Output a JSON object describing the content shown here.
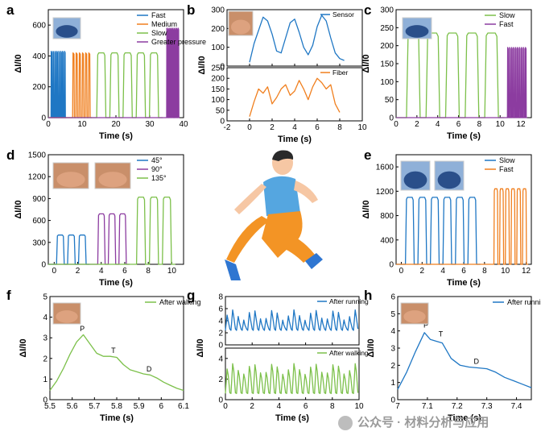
{
  "figure": {
    "panels": [
      {
        "id": "a",
        "label": "a"
      },
      {
        "id": "b",
        "label": "b"
      },
      {
        "id": "c",
        "label": "c"
      },
      {
        "id": "d",
        "label": "d"
      },
      {
        "id": "e",
        "label": "e"
      },
      {
        "id": "f",
        "label": "f"
      },
      {
        "id": "g",
        "label": "g"
      },
      {
        "id": "h",
        "label": "h"
      }
    ],
    "runner_icon": "running-person-icon",
    "colors": {
      "blue": "#1f77c4",
      "orange": "#f07f1e",
      "green": "#7cc04a",
      "purple": "#8c3ca0",
      "axis": "#000000"
    }
  },
  "watermark": {
    "text": "公众号 · 材料分析与应用"
  },
  "chart_data": [
    {
      "id": "a",
      "type": "line",
      "title": "",
      "xlabel": "Time (s)",
      "ylabel": "ΔI/I0",
      "xlim": [
        0,
        40
      ],
      "ylim": [
        0,
        700
      ],
      "xticks": [
        0,
        10,
        20,
        30,
        40
      ],
      "yticks": [
        0,
        200,
        400,
        600
      ],
      "legend_position": "top-right",
      "series": [
        {
          "name": "Fast",
          "color": "#1f77c4",
          "x_start": 0.8,
          "x_end": 5.3,
          "peak": 430,
          "pulses": 8,
          "shape": "spike"
        },
        {
          "name": "Medium",
          "color": "#f07f1e",
          "x_start": 7.2,
          "x_end": 12.8,
          "peak": 420,
          "pulses": 6,
          "shape": "spike"
        },
        {
          "name": "Slow",
          "color": "#7cc04a",
          "x_start": 14.3,
          "x_end": 33.8,
          "peak": 420,
          "pulses": 5,
          "shape": "plateau"
        },
        {
          "name": "Greater pressure",
          "color": "#8c3ca0",
          "x_start": 35.0,
          "x_end": 38.8,
          "peak": 580,
          "pulses": 9,
          "shape": "spike"
        }
      ]
    },
    {
      "id": "b",
      "type": "line",
      "xlabel": "Time (s)",
      "ylabel": "ΔI/I0",
      "xlim": [
        -2,
        10
      ],
      "xticks": [
        -2,
        0,
        2,
        4,
        6,
        8,
        10
      ],
      "subplots": [
        {
          "name": "Sensor",
          "color": "#1f77c4",
          "ylim": [
            0,
            300
          ],
          "yticks": [
            0,
            100,
            200,
            300
          ],
          "x": [
            0,
            0.4,
            0.8,
            1.2,
            1.6,
            2.0,
            2.4,
            2.8,
            3.2,
            3.6,
            4.0,
            4.4,
            4.8,
            5.2,
            5.6,
            6.0,
            6.4,
            6.8,
            7.2,
            7.6,
            8.0,
            8.4
          ],
          "values": [
            20,
            120,
            190,
            260,
            240,
            170,
            80,
            70,
            150,
            230,
            250,
            180,
            100,
            60,
            110,
            210,
            270,
            240,
            150,
            70,
            40,
            30
          ]
        },
        {
          "name": "Fiber",
          "color": "#f07f1e",
          "ylim": [
            0,
            250
          ],
          "yticks": [
            0,
            50,
            100,
            150,
            200,
            250
          ],
          "x": [
            0,
            0.4,
            0.8,
            1.2,
            1.6,
            2.0,
            2.4,
            2.8,
            3.2,
            3.6,
            4.0,
            4.4,
            4.8,
            5.2,
            5.6,
            6.0,
            6.4,
            6.8,
            7.2,
            7.6,
            8.0
          ],
          "values": [
            20,
            90,
            150,
            130,
            160,
            80,
            110,
            150,
            170,
            120,
            140,
            190,
            150,
            100,
            160,
            200,
            180,
            150,
            170,
            80,
            40
          ]
        }
      ]
    },
    {
      "id": "c",
      "type": "line",
      "xlabel": "Time (s)",
      "ylabel": "ΔI/I0",
      "xlim": [
        0,
        13
      ],
      "ylim": [
        0,
        300
      ],
      "xticks": [
        0,
        2,
        4,
        6,
        8,
        10,
        12
      ],
      "yticks": [
        0,
        50,
        100,
        150,
        200,
        250,
        300
      ],
      "legend_position": "top-right",
      "series": [
        {
          "name": "Slow",
          "color": "#7cc04a",
          "x_start": 1.0,
          "x_end": 10.4,
          "peak": 235,
          "pulses": 5,
          "shape": "plateau"
        },
        {
          "name": "Fast",
          "color": "#8c3ca0",
          "x_start": 10.7,
          "x_end": 12.6,
          "peak": 195,
          "pulses": 10,
          "shape": "spike"
        }
      ]
    },
    {
      "id": "d",
      "type": "line",
      "xlabel": "Time (s)",
      "ylabel": "ΔI/I0",
      "xlim": [
        -0.5,
        11
      ],
      "ylim": [
        0,
        1500
      ],
      "xticks": [
        0,
        2,
        4,
        6,
        8,
        10
      ],
      "yticks": [
        0,
        300,
        600,
        900,
        1200,
        1500
      ],
      "legend_position": "top-right",
      "series": [
        {
          "name": "45°",
          "color": "#1f77c4",
          "x_start": 0.2,
          "x_end": 3.0,
          "peak": 400,
          "pulses": 3,
          "shape": "plateau"
        },
        {
          "name": "90°",
          "color": "#8c3ca0",
          "x_start": 3.7,
          "x_end": 6.4,
          "peak": 690,
          "pulses": 3,
          "shape": "plateau"
        },
        {
          "name": "135°",
          "color": "#7cc04a",
          "x_start": 7.0,
          "x_end": 10.3,
          "peak": 920,
          "pulses": 3,
          "shape": "plateau"
        }
      ]
    },
    {
      "id": "e",
      "type": "line",
      "xlabel": "Time (s)",
      "ylabel": "ΔI/I0",
      "xlim": [
        -0.5,
        12.5
      ],
      "ylim": [
        0,
        1800
      ],
      "xticks": [
        0,
        2,
        4,
        6,
        8,
        10,
        12
      ],
      "yticks": [
        0,
        400,
        800,
        1200,
        1600
      ],
      "legend_position": "top-right",
      "series": [
        {
          "name": "Slow",
          "color": "#1f77c4",
          "x_start": 0.4,
          "x_end": 7.6,
          "peak": 1100,
          "pulses": 6,
          "shape": "plateau"
        },
        {
          "name": "Fast",
          "color": "#f07f1e",
          "x_start": 8.9,
          "x_end": 12.2,
          "peak": 1240,
          "pulses": 6,
          "shape": "plateau"
        }
      ]
    },
    {
      "id": "f",
      "type": "line",
      "xlabel": "Time (s)",
      "ylabel": "ΔI/I0",
      "xlim": [
        5.5,
        6.1
      ],
      "ylim": [
        0,
        5
      ],
      "xticks": [
        5.5,
        5.6,
        5.7,
        5.8,
        5.9,
        6.0,
        6.1
      ],
      "yticks": [
        0,
        1,
        2,
        3,
        4,
        5
      ],
      "legend_position": "top-right",
      "series": [
        {
          "name": "After walking",
          "color": "#7cc04a",
          "x": [
            5.5,
            5.53,
            5.56,
            5.59,
            5.62,
            5.65,
            5.68,
            5.71,
            5.74,
            5.77,
            5.8,
            5.83,
            5.86,
            5.89,
            5.92,
            5.95,
            5.98,
            6.01,
            6.04,
            6.07,
            6.1
          ],
          "values": [
            0.45,
            0.9,
            1.5,
            2.2,
            2.8,
            3.15,
            2.7,
            2.25,
            2.1,
            2.1,
            2.05,
            1.7,
            1.45,
            1.35,
            1.25,
            1.2,
            1.05,
            0.85,
            0.7,
            0.55,
            0.45
          ]
        }
      ],
      "annotations": [
        {
          "text": "P",
          "x": 5.645,
          "y": 3.2
        },
        {
          "text": "T",
          "x": 5.785,
          "y": 2.15
        },
        {
          "text": "D",
          "x": 5.945,
          "y": 1.25
        }
      ]
    },
    {
      "id": "g",
      "type": "line",
      "xlabel": "Time (s)",
      "ylabel": "ΔI/I0",
      "xlim": [
        0,
        10
      ],
      "xticks": [
        0,
        2,
        4,
        6,
        8,
        10
      ],
      "subplots": [
        {
          "name": "After running",
          "color": "#1f77c4",
          "ylim": [
            0,
            8
          ],
          "yticks": [
            0,
            2,
            4,
            6,
            8
          ],
          "cycles": 24,
          "peak": 5.8,
          "base": 2.4
        },
        {
          "name": "After walking",
          "color": "#7cc04a",
          "ylim": [
            0,
            5
          ],
          "yticks": [
            0,
            2,
            4
          ],
          "cycles": 24,
          "peak": 3.5,
          "base": 0.6
        }
      ]
    },
    {
      "id": "h",
      "type": "line",
      "xlabel": "Time (s)",
      "ylabel": "ΔI/I0",
      "xlim": [
        7.0,
        7.45
      ],
      "ylim": [
        0,
        6
      ],
      "xticks": [
        7.0,
        7.1,
        7.2,
        7.3,
        7.4
      ],
      "yticks": [
        0,
        1,
        2,
        3,
        4,
        5,
        6
      ],
      "legend_position": "top-right",
      "series": [
        {
          "name": "After running",
          "color": "#1f77c4",
          "x": [
            7.0,
            7.03,
            7.06,
            7.09,
            7.11,
            7.13,
            7.15,
            7.18,
            7.21,
            7.24,
            7.27,
            7.3,
            7.33,
            7.36,
            7.39,
            7.42,
            7.45
          ],
          "values": [
            0.6,
            1.6,
            2.8,
            3.9,
            3.5,
            3.4,
            3.3,
            2.4,
            2.0,
            1.9,
            1.85,
            1.8,
            1.6,
            1.3,
            1.1,
            0.9,
            0.7
          ]
        }
      ],
      "annotations": [
        {
          "text": "P",
          "x": 7.095,
          "y": 4.05
        },
        {
          "text": "T",
          "x": 7.145,
          "y": 3.55
        },
        {
          "text": "D",
          "x": 7.265,
          "y": 1.95
        }
      ]
    }
  ]
}
